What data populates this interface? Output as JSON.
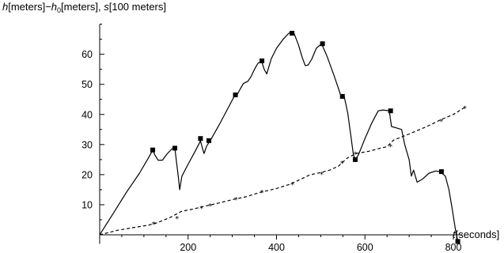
{
  "chart_data": {
    "type": "line",
    "y_axis_title": {
      "h": "h",
      "meters_1": "[meters]",
      "minus": "−",
      "h0": "h",
      "h0_sub": "0",
      "meters_2": "[meters], ",
      "s": "s",
      "s_unit": "[100 meters]"
    },
    "x_axis_title": {
      "t": "t",
      "unit": "[seconds]"
    },
    "xlim": [
      0,
      820
    ],
    "ylim": [
      -3,
      70
    ],
    "x_ticks": [
      200,
      400,
      600,
      800
    ],
    "x_minor_step": 50,
    "y_ticks": [
      10,
      20,
      30,
      40,
      50,
      60
    ],
    "y_minor_step": 5,
    "grid": false,
    "series": [
      {
        "style": "solid",
        "line": [
          [
            0,
            0
          ],
          [
            30,
            7
          ],
          [
            60,
            14
          ],
          [
            90,
            20.5
          ],
          [
            110,
            25.5
          ],
          [
            120,
            28.2
          ],
          [
            125,
            26.5
          ],
          [
            132,
            24.8
          ],
          [
            142,
            24.8
          ],
          [
            152,
            26.8
          ],
          [
            163,
            28.5
          ],
          [
            170,
            28.8
          ],
          [
            174,
            24
          ],
          [
            178,
            19
          ],
          [
            181,
            15
          ],
          [
            186,
            19.5
          ],
          [
            200,
            23.5
          ],
          [
            215,
            27.5
          ],
          [
            228,
            31.2
          ],
          [
            232,
            29
          ],
          [
            236,
            27
          ],
          [
            242,
            29.5
          ],
          [
            250,
            31.3
          ],
          [
            270,
            36.5
          ],
          [
            290,
            42
          ],
          [
            305,
            46.2
          ],
          [
            312,
            46.8
          ],
          [
            318,
            48.5
          ],
          [
            325,
            50.3
          ],
          [
            335,
            51
          ],
          [
            342,
            52.5
          ],
          [
            350,
            55
          ],
          [
            358,
            57
          ],
          [
            366,
            57.8
          ],
          [
            372,
            55
          ],
          [
            378,
            53.5
          ],
          [
            388,
            58.5
          ],
          [
            400,
            62
          ],
          [
            415,
            65
          ],
          [
            428,
            67
          ],
          [
            435,
            67.3
          ],
          [
            440,
            66.8
          ],
          [
            450,
            63
          ],
          [
            458,
            59
          ],
          [
            465,
            56.2
          ],
          [
            472,
            56.5
          ],
          [
            480,
            58.5
          ],
          [
            490,
            62
          ],
          [
            502,
            63.5
          ],
          [
            515,
            59
          ],
          [
            530,
            53
          ],
          [
            545,
            46.5
          ],
          [
            553,
            46
          ],
          [
            561,
            40.5
          ],
          [
            568,
            33
          ],
          [
            574,
            26.5
          ],
          [
            578,
            25
          ],
          [
            585,
            26.5
          ],
          [
            600,
            32
          ],
          [
            615,
            37
          ],
          [
            630,
            41.2
          ],
          [
            641,
            41.5
          ],
          [
            655,
            41.2
          ],
          [
            660,
            36
          ],
          [
            672,
            35.5
          ],
          [
            683,
            35
          ],
          [
            690,
            30
          ],
          [
            700,
            25
          ],
          [
            705,
            19.5
          ],
          [
            710,
            21.5
          ],
          [
            718,
            17.5
          ],
          [
            730,
            18.5
          ],
          [
            745,
            20.5
          ],
          [
            760,
            21.2
          ],
          [
            770,
            21
          ],
          [
            782,
            19.5
          ],
          [
            790,
            15
          ],
          [
            798,
            8
          ],
          [
            805,
            1.5
          ],
          [
            810,
            -2.2
          ]
        ],
        "markers": [
          [
            120,
            28.2
          ],
          [
            170,
            28.8
          ],
          [
            228,
            32
          ],
          [
            247,
            31.3
          ],
          [
            307,
            46.5
          ],
          [
            367,
            57.8
          ],
          [
            435,
            67
          ],
          [
            504,
            63.5
          ],
          [
            549,
            46
          ],
          [
            578,
            25
          ],
          [
            658,
            41.2
          ],
          [
            773,
            21
          ],
          [
            810,
            -2.2
          ]
        ]
      },
      {
        "style": "dashed",
        "line": [
          [
            0,
            0
          ],
          [
            40,
            1.5
          ],
          [
            80,
            2.5
          ],
          [
            110,
            3.2
          ],
          [
            130,
            4
          ],
          [
            160,
            5.8
          ],
          [
            185,
            7.8
          ],
          [
            210,
            8.5
          ],
          [
            240,
            9.6
          ],
          [
            270,
            10.6
          ],
          [
            300,
            11.7
          ],
          [
            330,
            12.6
          ],
          [
            365,
            14.2
          ],
          [
            400,
            15.4
          ],
          [
            430,
            16.8
          ],
          [
            455,
            18.5
          ],
          [
            475,
            19.9
          ],
          [
            500,
            20.7
          ],
          [
            520,
            21.5
          ],
          [
            540,
            22.8
          ],
          [
            560,
            25.5
          ],
          [
            580,
            27
          ],
          [
            610,
            27.8
          ],
          [
            635,
            28.8
          ],
          [
            650,
            29.3
          ],
          [
            665,
            31.5
          ],
          [
            700,
            33.5
          ],
          [
            740,
            36
          ],
          [
            775,
            38.5
          ],
          [
            800,
            40
          ],
          [
            825,
            42.3
          ]
        ],
        "markers": [
          [
            122,
            3.8
          ],
          [
            175,
            5.6
          ],
          [
            230,
            9
          ],
          [
            250,
            9.9
          ],
          [
            308,
            11.9
          ],
          [
            367,
            14.3
          ],
          [
            436,
            16.9
          ],
          [
            502,
            20.3
          ],
          [
            548,
            24
          ],
          [
            578,
            27
          ],
          [
            658,
            29.5
          ],
          [
            773,
            38
          ],
          [
            826,
            42.3
          ]
        ]
      }
    ]
  }
}
